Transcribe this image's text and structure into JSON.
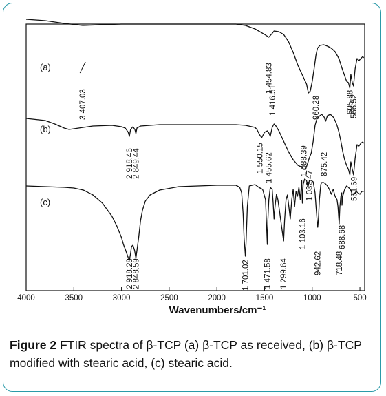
{
  "caption": {
    "label": "Figure 2",
    "text": " FTIR spectra of β-TCP (a) β-TCP as received, (b) β-TCP modified with stearic acid, (c) stearic acid."
  },
  "chart_data": {
    "type": "line",
    "title": "",
    "xlabel": "Wavenumbers/cm⁻¹",
    "ylabel": "",
    "xlim": [
      4000,
      450
    ],
    "x_reversed": true,
    "xticks": [
      4000,
      3500,
      3000,
      2500,
      2000,
      1500,
      1000,
      500
    ],
    "grid": false,
    "colors": {
      "frame": "#2a9aa8",
      "line": "#111111"
    },
    "series": [
      {
        "name": "(a)",
        "points": [
          [
            4000,
            28
          ],
          [
            3800,
            30
          ],
          [
            3600,
            34
          ],
          [
            3407,
            37
          ],
          [
            3200,
            36
          ],
          [
            3000,
            35
          ],
          [
            2800,
            35
          ],
          [
            2500,
            35
          ],
          [
            2200,
            35
          ],
          [
            2000,
            35
          ],
          [
            1800,
            35
          ],
          [
            1700,
            37
          ],
          [
            1600,
            42
          ],
          [
            1500,
            50
          ],
          [
            1455,
            54
          ],
          [
            1430,
            50
          ],
          [
            1417,
            48
          ],
          [
            1400,
            45
          ],
          [
            1350,
            46
          ],
          [
            1300,
            50
          ],
          [
            1250,
            60
          ],
          [
            1200,
            76
          ],
          [
            1150,
            95
          ],
          [
            1100,
            110
          ],
          [
            1060,
            122
          ],
          [
            1040,
            135
          ],
          [
            1020,
            132
          ],
          [
            1000,
            118
          ],
          [
            980,
            100
          ],
          [
            961,
            80
          ],
          [
            945,
            70
          ],
          [
            920,
            66
          ],
          [
            880,
            65
          ],
          [
            840,
            67
          ],
          [
            800,
            70
          ],
          [
            760,
            75
          ],
          [
            720,
            85
          ],
          [
            690,
            98
          ],
          [
            660,
            110
          ],
          [
            640,
            118
          ],
          [
            620,
            120
          ],
          [
            606,
            128
          ],
          [
            595,
            108
          ],
          [
            580,
            120
          ],
          [
            567,
            125
          ],
          [
            550,
            100
          ],
          [
            530,
            85
          ],
          [
            510,
            88
          ],
          [
            490,
            85
          ],
          [
            470,
            82
          ],
          [
            460,
            84
          ]
        ],
        "peak_labels": [
          "3 407.03",
          "1 454.83",
          "1 416.51",
          "960.28",
          "605.88",
          "566.52"
        ]
      },
      {
        "name": "(b)",
        "points": [
          [
            4000,
            172
          ],
          [
            3800,
            175
          ],
          [
            3700,
            180
          ],
          [
            3600,
            186
          ],
          [
            3550,
            188
          ],
          [
            3500,
            187
          ],
          [
            3300,
            183
          ],
          [
            3100,
            182
          ],
          [
            3000,
            184
          ],
          [
            2960,
            186
          ],
          [
            2930,
            192
          ],
          [
            2918,
            198
          ],
          [
            2905,
            188
          ],
          [
            2880,
            184
          ],
          [
            2860,
            188
          ],
          [
            2849,
            194
          ],
          [
            2838,
            186
          ],
          [
            2800,
            183
          ],
          [
            2600,
            181
          ],
          [
            2400,
            181
          ],
          [
            2200,
            181
          ],
          [
            2000,
            181
          ],
          [
            1800,
            181
          ],
          [
            1700,
            182
          ],
          [
            1600,
            185
          ],
          [
            1580,
            188
          ],
          [
            1550,
            196
          ],
          [
            1530,
            200
          ],
          [
            1500,
            192
          ],
          [
            1470,
            190
          ],
          [
            1455,
            193
          ],
          [
            1440,
            198
          ],
          [
            1420,
            185
          ],
          [
            1400,
            180
          ],
          [
            1380,
            183
          ],
          [
            1350,
            190
          ],
          [
            1300,
            205
          ],
          [
            1250,
            220
          ],
          [
            1200,
            232
          ],
          [
            1150,
            240
          ],
          [
            1120,
            242
          ],
          [
            1100,
            244
          ],
          [
            1088,
            246
          ],
          [
            1070,
            246
          ],
          [
            1050,
            238
          ],
          [
            1032,
            230
          ],
          [
            1010,
            222
          ],
          [
            990,
            205
          ],
          [
            970,
            182
          ],
          [
            950,
            172
          ],
          [
            920,
            168
          ],
          [
            900,
            166
          ],
          [
            875,
            170
          ],
          [
            860,
            176
          ],
          [
            840,
            168
          ],
          [
            810,
            166
          ],
          [
            780,
            170
          ],
          [
            760,
            175
          ],
          [
            740,
            182
          ],
          [
            720,
            192
          ],
          [
            700,
            205
          ],
          [
            680,
            220
          ],
          [
            660,
            232
          ],
          [
            640,
            240
          ],
          [
            620,
            246
          ],
          [
            605,
            254
          ],
          [
            595,
            235
          ],
          [
            580,
            246
          ],
          [
            566,
            254
          ],
          [
            550,
            230
          ],
          [
            530,
            210
          ],
          [
            510,
            212
          ],
          [
            490,
            208
          ],
          [
            470,
            206
          ],
          [
            460,
            208
          ]
        ],
        "peak_labels": [
          "2 918.46",
          "2 849.44",
          "1 550.15",
          "1 455.62",
          "1 088.39",
          "1 032.47",
          "875.42",
          "561.69"
        ]
      },
      {
        "name": "(c)",
        "points": [
          [
            4000,
            270
          ],
          [
            3800,
            271
          ],
          [
            3600,
            272
          ],
          [
            3500,
            273
          ],
          [
            3400,
            276
          ],
          [
            3300,
            283
          ],
          [
            3200,
            295
          ],
          [
            3100,
            314
          ],
          [
            3050,
            328
          ],
          [
            3000,
            345
          ],
          [
            2980,
            355
          ],
          [
            2960,
            362
          ],
          [
            2940,
            370
          ],
          [
            2930,
            374
          ],
          [
            2918,
            378
          ],
          [
            2905,
            368
          ],
          [
            2895,
            358
          ],
          [
            2880,
            356
          ],
          [
            2862,
            364
          ],
          [
            2849,
            375
          ],
          [
            2838,
            364
          ],
          [
            2820,
            345
          ],
          [
            2800,
            320
          ],
          [
            2780,
            305
          ],
          [
            2750,
            292
          ],
          [
            2700,
            283
          ],
          [
            2600,
            276
          ],
          [
            2400,
            271
          ],
          [
            2200,
            270
          ],
          [
            2000,
            269
          ],
          [
            1900,
            269
          ],
          [
            1800,
            269
          ],
          [
            1760,
            272
          ],
          [
            1740,
            280
          ],
          [
            1725,
            310
          ],
          [
            1715,
            345
          ],
          [
            1705,
            365
          ],
          [
            1701,
            372
          ],
          [
            1695,
            355
          ],
          [
            1680,
            300
          ],
          [
            1660,
            270
          ],
          [
            1600,
            268
          ],
          [
            1560,
            272
          ],
          [
            1520,
            275
          ],
          [
            1490,
            290
          ],
          [
            1480,
            325
          ],
          [
            1471,
            355
          ],
          [
            1465,
            320
          ],
          [
            1455,
            290
          ],
          [
            1440,
            272
          ],
          [
            1420,
            275
          ],
          [
            1410,
            295
          ],
          [
            1400,
            318
          ],
          [
            1390,
            300
          ],
          [
            1375,
            282
          ],
          [
            1360,
            290
          ],
          [
            1340,
            310
          ],
          [
            1320,
            330
          ],
          [
            1300,
            350
          ],
          [
            1290,
            320
          ],
          [
            1275,
            290
          ],
          [
            1260,
            283
          ],
          [
            1245,
            300
          ],
          [
            1230,
            318
          ],
          [
            1215,
            290
          ],
          [
            1200,
            275
          ],
          [
            1185,
            300
          ],
          [
            1170,
            278
          ],
          [
            1155,
            285
          ],
          [
            1140,
            272
          ],
          [
            1125,
            290
          ],
          [
            1110,
            262
          ],
          [
            1103,
            295
          ],
          [
            1095,
            268
          ],
          [
            1080,
            260
          ],
          [
            1060,
            262
          ],
          [
            1045,
            272
          ],
          [
            1030,
            262
          ],
          [
            1010,
            262
          ],
          [
            990,
            264
          ],
          [
            970,
            280
          ],
          [
            960,
            300
          ],
          [
            950,
            318
          ],
          [
            942,
            330
          ],
          [
            935,
            318
          ],
          [
            925,
            290
          ],
          [
            910,
            268
          ],
          [
            900,
            265
          ],
          [
            880,
            265
          ],
          [
            860,
            267
          ],
          [
            840,
            270
          ],
          [
            820,
            275
          ],
          [
            800,
            282
          ],
          [
            780,
            275
          ],
          [
            760,
            285
          ],
          [
            740,
            290
          ],
          [
            730,
            300
          ],
          [
            718,
            325
          ],
          [
            710,
            300
          ],
          [
            700,
            285
          ],
          [
            690,
            280
          ],
          [
            688,
            298
          ],
          [
            680,
            285
          ],
          [
            660,
            275
          ],
          [
            640,
            270
          ],
          [
            620,
            272
          ],
          [
            600,
            275
          ],
          [
            580,
            282
          ],
          [
            560,
            282
          ],
          [
            540,
            278
          ],
          [
            520,
            280
          ],
          [
            500,
            282
          ],
          [
            480,
            278
          ],
          [
            460,
            278
          ]
        ],
        "peak_labels": [
          "2 918.28",
          "2 848.59",
          "1 701.02",
          "1 471.58",
          "1 299.64",
          "1 103.16",
          "942.62",
          "718.48",
          "688.68"
        ]
      }
    ]
  }
}
